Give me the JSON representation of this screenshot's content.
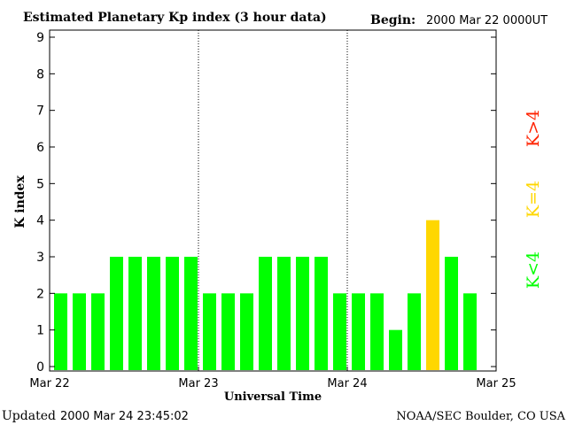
{
  "chart_data": {
    "type": "bar",
    "title": "Estimated Planetary Kp index (3 hour data)",
    "begin_label": "Begin:",
    "begin_value": "2000 Mar 22 0000UT",
    "xlabel": "Universal Time",
    "ylabel": "K index",
    "ylim": [
      0,
      9
    ],
    "y_ticks": [
      "0",
      "1",
      "2",
      "3",
      "4",
      "5",
      "6",
      "7",
      "8",
      "9"
    ],
    "x_ticks": [
      "Mar 22",
      "Mar 23",
      "Mar 24",
      "Mar 25"
    ],
    "interval_hours": 3,
    "values": [
      2,
      2,
      2,
      3,
      3,
      3,
      3,
      3,
      2,
      2,
      2,
      3,
      3,
      3,
      3,
      2,
      2,
      2,
      1,
      2,
      4,
      3,
      2
    ],
    "day_separators": [
      "Mar 23",
      "Mar 24"
    ],
    "legend": [
      {
        "label": "K<4",
        "color": "#00ff00"
      },
      {
        "label": "K=4",
        "color": "#ffd700"
      },
      {
        "label": "K>4",
        "color": "#ff2200"
      }
    ],
    "grid": false,
    "legend_placement": "right"
  },
  "footer": {
    "updated_label": "Updated",
    "updated_value": "2000 Mar 24 23:45:02",
    "source": "NOAA/SEC Boulder, CO USA"
  }
}
